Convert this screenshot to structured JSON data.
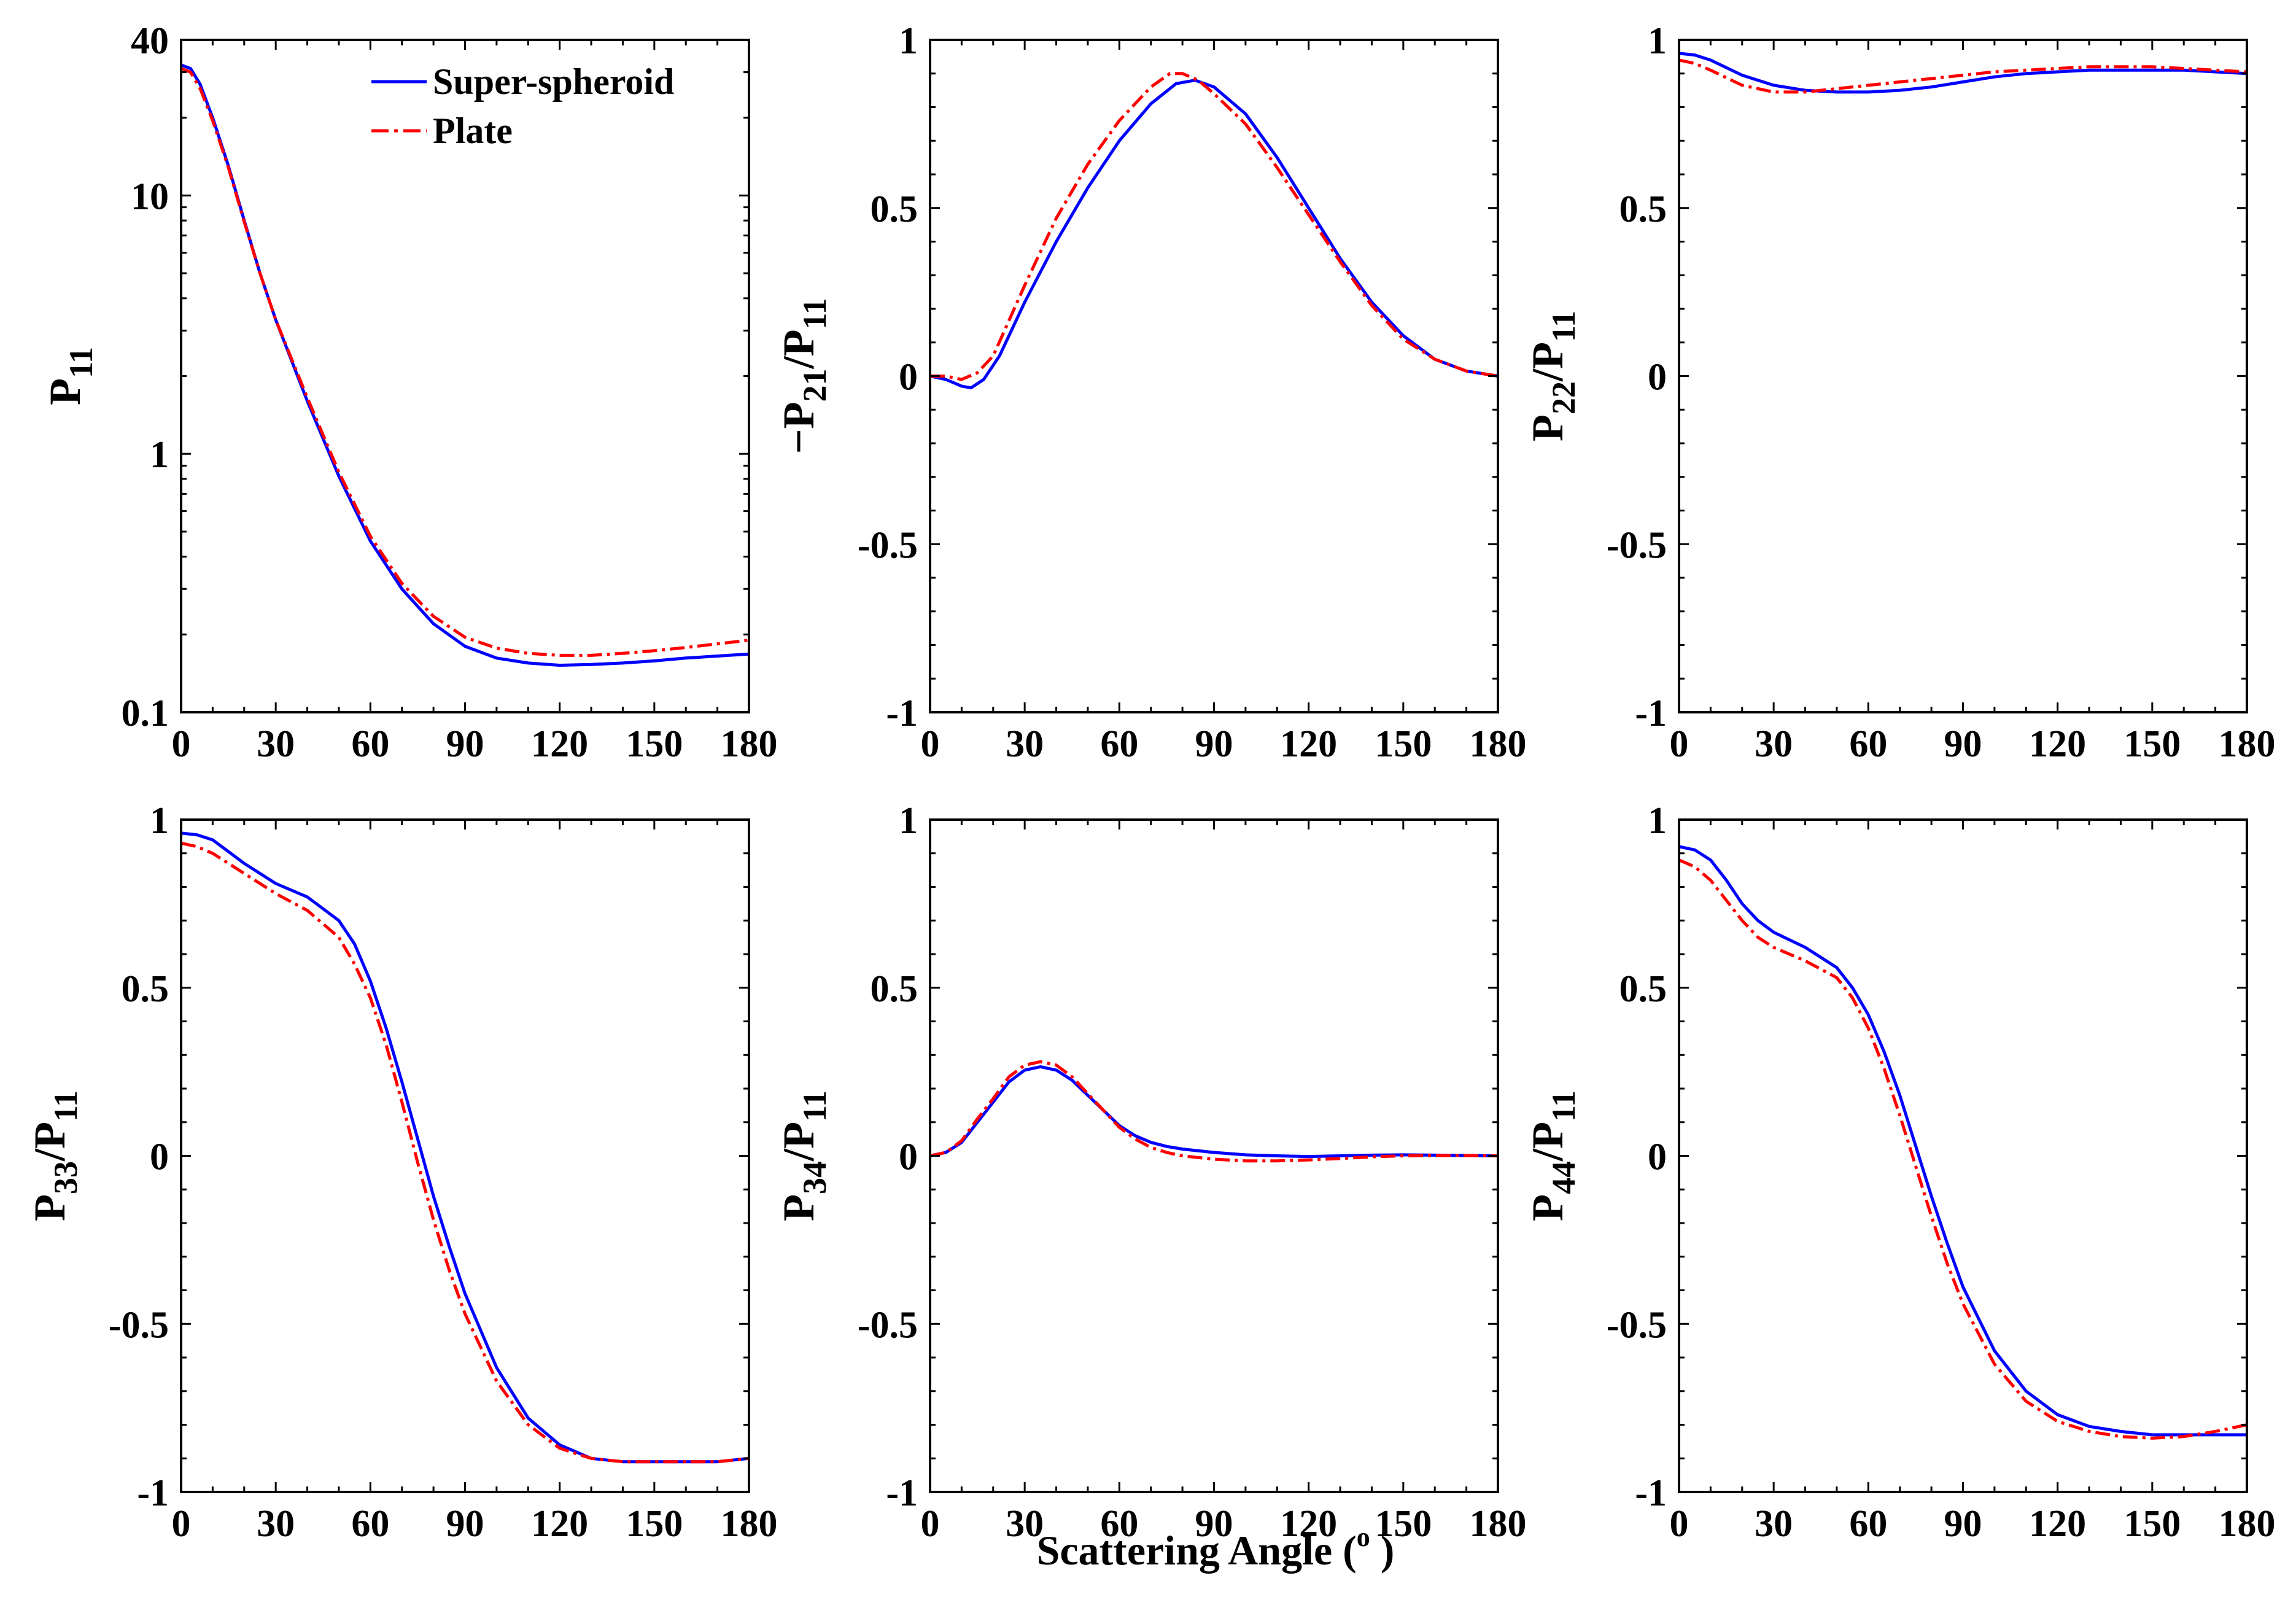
{
  "figure": {
    "xlabel": "Scattering Angle ( ° )",
    "xlabel_parts": {
      "before": "Scattering Angle (",
      "sup": "o",
      "after": " )"
    },
    "legend": {
      "entries": [
        {
          "label": "Super-spheroid",
          "color": "#0000ff",
          "style": "solid"
        },
        {
          "label": "Plate",
          "color": "#ff0000",
          "style": "dashdot"
        }
      ]
    }
  },
  "chart_data": [
    {
      "id": "p11",
      "type": "line",
      "yscale": "log",
      "ylabel": {
        "main": "P",
        "sub": "11",
        "rest": "",
        "sub2": "",
        "prefix": ""
      },
      "xlim": [
        0,
        180
      ],
      "ylim": [
        0.1,
        40
      ],
      "xticks": [
        0,
        30,
        60,
        90,
        120,
        150,
        180
      ],
      "xtick_labels": [
        "0",
        "30",
        "60",
        "90",
        "120",
        "150",
        "180"
      ],
      "yticks": [
        0.1,
        1,
        10,
        40
      ],
      "ytick_labels": [
        "0.1",
        "1",
        "10",
        "40"
      ],
      "series": [
        {
          "name": "Super-spheroid",
          "x": [
            0,
            3,
            6,
            10,
            15,
            20,
            25,
            30,
            40,
            50,
            60,
            70,
            80,
            90,
            100,
            110,
            120,
            130,
            140,
            150,
            160,
            170,
            180
          ],
          "y": [
            32,
            31,
            27,
            20,
            13,
            8.0,
            5.0,
            3.3,
            1.6,
            0.82,
            0.46,
            0.3,
            0.22,
            0.18,
            0.162,
            0.155,
            0.152,
            0.153,
            0.155,
            0.158,
            0.162,
            0.165,
            0.168
          ]
        },
        {
          "name": "Plate",
          "x": [
            0,
            3,
            6,
            10,
            15,
            20,
            25,
            30,
            40,
            50,
            60,
            70,
            80,
            90,
            100,
            110,
            120,
            130,
            140,
            150,
            160,
            170,
            180
          ],
          "y": [
            31,
            30,
            26,
            19.5,
            12.8,
            7.9,
            5.0,
            3.3,
            1.65,
            0.85,
            0.48,
            0.315,
            0.235,
            0.195,
            0.177,
            0.169,
            0.166,
            0.166,
            0.169,
            0.173,
            0.178,
            0.184,
            0.19
          ]
        }
      ]
    },
    {
      "id": "p21",
      "type": "line",
      "yscale": "linear",
      "ylabel": {
        "prefix": "−",
        "main": "P",
        "sub": "21",
        "rest": "/P",
        "sub2": "11"
      },
      "xlim": [
        0,
        180
      ],
      "ylim": [
        -1,
        1
      ],
      "xticks": [
        0,
        30,
        60,
        90,
        120,
        150,
        180
      ],
      "xtick_labels": [
        "0",
        "30",
        "60",
        "90",
        "120",
        "150",
        "180"
      ],
      "yticks": [
        -1,
        -0.5,
        0,
        0.5,
        1
      ],
      "ytick_labels": [
        "-1",
        "-0.5",
        "0",
        "0.5",
        "1"
      ],
      "series": [
        {
          "name": "Super-spheroid",
          "x": [
            0,
            5,
            10,
            13,
            17,
            22,
            30,
            40,
            50,
            60,
            70,
            78,
            84,
            90,
            100,
            110,
            120,
            130,
            140,
            150,
            160,
            170,
            180
          ],
          "y": [
            0,
            -0.01,
            -0.03,
            -0.035,
            -0.01,
            0.06,
            0.22,
            0.4,
            0.56,
            0.7,
            0.81,
            0.87,
            0.88,
            0.86,
            0.78,
            0.65,
            0.5,
            0.35,
            0.22,
            0.12,
            0.05,
            0.015,
            0
          ]
        },
        {
          "name": "Plate",
          "x": [
            0,
            5,
            10,
            15,
            20,
            30,
            40,
            50,
            60,
            70,
            76,
            80,
            85,
            90,
            100,
            110,
            120,
            130,
            140,
            150,
            160,
            170,
            180
          ],
          "y": [
            0,
            0,
            -0.01,
            0.01,
            0.06,
            0.27,
            0.47,
            0.63,
            0.76,
            0.86,
            0.9,
            0.9,
            0.88,
            0.84,
            0.75,
            0.62,
            0.48,
            0.34,
            0.21,
            0.11,
            0.05,
            0.015,
            0
          ]
        }
      ]
    },
    {
      "id": "p22",
      "type": "line",
      "yscale": "linear",
      "ylabel": {
        "prefix": "",
        "main": "P",
        "sub": "22",
        "rest": "/P",
        "sub2": "11"
      },
      "xlim": [
        0,
        180
      ],
      "ylim": [
        -1,
        1
      ],
      "xticks": [
        0,
        30,
        60,
        90,
        120,
        150,
        180
      ],
      "xtick_labels": [
        "0",
        "30",
        "60",
        "90",
        "120",
        "150",
        "180"
      ],
      "yticks": [
        -1,
        -0.5,
        0,
        0.5,
        1
      ],
      "ytick_labels": [
        "-1",
        "-0.5",
        "0",
        "0.5",
        "1"
      ],
      "series": [
        {
          "name": "Super-spheroid",
          "x": [
            0,
            5,
            10,
            20,
            30,
            40,
            50,
            60,
            70,
            80,
            90,
            100,
            110,
            120,
            130,
            140,
            150,
            160,
            170,
            180
          ],
          "y": [
            0.96,
            0.955,
            0.94,
            0.895,
            0.865,
            0.85,
            0.845,
            0.845,
            0.85,
            0.86,
            0.875,
            0.89,
            0.9,
            0.905,
            0.91,
            0.91,
            0.91,
            0.91,
            0.905,
            0.9
          ]
        },
        {
          "name": "Plate",
          "x": [
            0,
            5,
            10,
            20,
            30,
            40,
            50,
            60,
            70,
            80,
            90,
            100,
            110,
            120,
            130,
            140,
            150,
            160,
            170,
            180
          ],
          "y": [
            0.94,
            0.93,
            0.91,
            0.865,
            0.845,
            0.845,
            0.855,
            0.865,
            0.875,
            0.885,
            0.895,
            0.905,
            0.91,
            0.915,
            0.92,
            0.92,
            0.92,
            0.915,
            0.91,
            0.905
          ]
        }
      ]
    },
    {
      "id": "p33",
      "type": "line",
      "yscale": "linear",
      "ylabel": {
        "prefix": "",
        "main": "P",
        "sub": "33",
        "rest": "/P",
        "sub2": "11"
      },
      "xlim": [
        0,
        180
      ],
      "ylim": [
        -1,
        1
      ],
      "xticks": [
        0,
        30,
        60,
        90,
        120,
        150,
        180
      ],
      "xtick_labels": [
        "0",
        "30",
        "60",
        "90",
        "120",
        "150",
        "180"
      ],
      "yticks": [
        -1,
        -0.5,
        0,
        0.5,
        1
      ],
      "ytick_labels": [
        "-1",
        "-0.5",
        "0",
        "0.5",
        "1"
      ],
      "series": [
        {
          "name": "Super-spheroid",
          "x": [
            0,
            5,
            10,
            20,
            30,
            40,
            50,
            55,
            60,
            65,
            70,
            75,
            80,
            85,
            90,
            100,
            110,
            120,
            130,
            140,
            150,
            160,
            170,
            180
          ],
          "y": [
            0.96,
            0.955,
            0.94,
            0.87,
            0.81,
            0.77,
            0.7,
            0.63,
            0.52,
            0.38,
            0.22,
            0.05,
            -0.12,
            -0.27,
            -0.41,
            -0.63,
            -0.78,
            -0.86,
            -0.9,
            -0.91,
            -0.91,
            -0.91,
            -0.91,
            -0.9
          ]
        },
        {
          "name": "Plate",
          "x": [
            0,
            5,
            10,
            20,
            30,
            40,
            50,
            55,
            60,
            65,
            70,
            75,
            80,
            85,
            90,
            100,
            110,
            120,
            130,
            140,
            150,
            160,
            170,
            180
          ],
          "y": [
            0.93,
            0.92,
            0.9,
            0.84,
            0.78,
            0.73,
            0.65,
            0.57,
            0.47,
            0.33,
            0.16,
            -0.02,
            -0.19,
            -0.34,
            -0.47,
            -0.67,
            -0.8,
            -0.87,
            -0.9,
            -0.91,
            -0.91,
            -0.91,
            -0.91,
            -0.9
          ]
        }
      ]
    },
    {
      "id": "p34",
      "type": "line",
      "yscale": "linear",
      "ylabel": {
        "prefix": "",
        "main": "P",
        "sub": "34",
        "rest": "/P",
        "sub2": "11"
      },
      "xlim": [
        0,
        180
      ],
      "ylim": [
        -1,
        1
      ],
      "xticks": [
        0,
        30,
        60,
        90,
        120,
        150,
        180
      ],
      "xtick_labels": [
        "0",
        "30",
        "60",
        "90",
        "120",
        "150",
        "180"
      ],
      "yticks": [
        -1,
        -0.5,
        0,
        0.5,
        1
      ],
      "ytick_labels": [
        "-1",
        "-0.5",
        "0",
        "0.5",
        "1"
      ],
      "series": [
        {
          "name": "Super-spheroid",
          "x": [
            0,
            5,
            10,
            15,
            20,
            25,
            30,
            35,
            40,
            45,
            50,
            55,
            60,
            65,
            70,
            75,
            80,
            90,
            100,
            110,
            120,
            130,
            140,
            150,
            160,
            170,
            180
          ],
          "y": [
            0,
            0.01,
            0.04,
            0.1,
            0.16,
            0.22,
            0.255,
            0.265,
            0.255,
            0.225,
            0.18,
            0.135,
            0.09,
            0.06,
            0.04,
            0.028,
            0.02,
            0.01,
            0.003,
            0,
            -0.002,
            0,
            0.002,
            0.003,
            0.002,
            0.001,
            0
          ]
        },
        {
          "name": "Plate",
          "x": [
            0,
            5,
            10,
            15,
            20,
            25,
            30,
            35,
            40,
            45,
            50,
            55,
            60,
            65,
            70,
            75,
            80,
            90,
            100,
            110,
            120,
            130,
            140,
            150,
            160,
            170,
            180
          ],
          "y": [
            0,
            0.01,
            0.045,
            0.11,
            0.17,
            0.235,
            0.27,
            0.28,
            0.27,
            0.235,
            0.185,
            0.135,
            0.085,
            0.05,
            0.025,
            0.01,
            0,
            -0.01,
            -0.015,
            -0.015,
            -0.012,
            -0.008,
            -0.003,
            0,
            0.001,
            0.001,
            0
          ]
        }
      ]
    },
    {
      "id": "p44",
      "type": "line",
      "yscale": "linear",
      "ylabel": {
        "prefix": "",
        "main": "P",
        "sub": "44",
        "rest": "/P",
        "sub2": "11"
      },
      "xlim": [
        0,
        180
      ],
      "ylim": [
        -1,
        1
      ],
      "xticks": [
        0,
        30,
        60,
        90,
        120,
        150,
        180
      ],
      "xtick_labels": [
        "0",
        "30",
        "60",
        "90",
        "120",
        "150",
        "180"
      ],
      "yticks": [
        -1,
        -0.5,
        0,
        0.5,
        1
      ],
      "ytick_labels": [
        "-1",
        "-0.5",
        "0",
        "0.5",
        "1"
      ],
      "series": [
        {
          "name": "Super-spheroid",
          "x": [
            0,
            5,
            10,
            15,
            20,
            25,
            30,
            40,
            50,
            55,
            60,
            65,
            70,
            75,
            80,
            85,
            90,
            100,
            110,
            120,
            130,
            140,
            150,
            160,
            170,
            180
          ],
          "y": [
            0.92,
            0.91,
            0.88,
            0.82,
            0.75,
            0.7,
            0.665,
            0.62,
            0.56,
            0.5,
            0.42,
            0.31,
            0.18,
            0.03,
            -0.12,
            -0.26,
            -0.39,
            -0.58,
            -0.7,
            -0.77,
            -0.805,
            -0.82,
            -0.83,
            -0.83,
            -0.83,
            -0.83
          ]
        },
        {
          "name": "Plate",
          "x": [
            0,
            5,
            10,
            15,
            20,
            25,
            30,
            40,
            50,
            55,
            60,
            65,
            70,
            75,
            80,
            85,
            90,
            100,
            110,
            120,
            130,
            140,
            150,
            160,
            170,
            180
          ],
          "y": [
            0.88,
            0.86,
            0.82,
            0.76,
            0.7,
            0.65,
            0.62,
            0.58,
            0.53,
            0.47,
            0.38,
            0.26,
            0.12,
            -0.03,
            -0.18,
            -0.32,
            -0.44,
            -0.62,
            -0.73,
            -0.79,
            -0.82,
            -0.835,
            -0.84,
            -0.835,
            -0.82,
            -0.8
          ]
        }
      ]
    }
  ]
}
